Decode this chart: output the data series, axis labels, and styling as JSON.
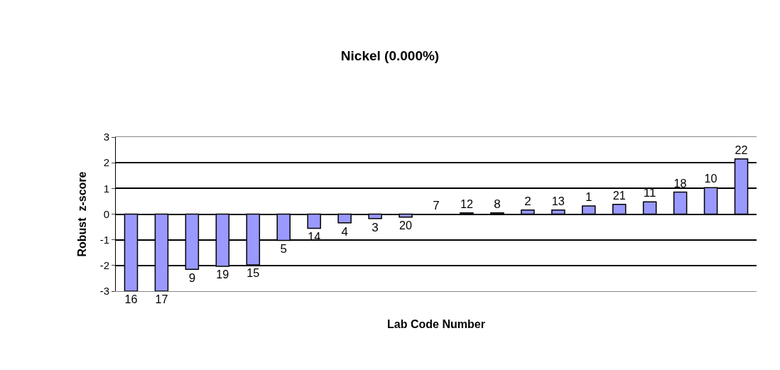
{
  "chart_data": {
    "type": "bar",
    "title": "Nickel (0.000%)",
    "xlabel": "Lab Code Number",
    "ylabel": "Robust  z-score",
    "categories": [
      "16",
      "17",
      "9",
      "19",
      "15",
      "5",
      "14",
      "4",
      "3",
      "20",
      "7",
      "12",
      "8",
      "2",
      "13",
      "1",
      "21",
      "11",
      "18",
      "10",
      "22"
    ],
    "values": [
      -3.0,
      -3.0,
      -2.15,
      -2.03,
      -1.98,
      -1.02,
      -0.55,
      -0.34,
      -0.17,
      -0.12,
      0,
      0.05,
      0.05,
      0.16,
      0.16,
      0.32,
      0.38,
      0.48,
      0.86,
      1.03,
      2.15
    ],
    "color": "#9999ff",
    "ylim": [
      -3,
      3
    ],
    "yticks": [
      -3,
      -2,
      -1,
      0,
      1,
      2,
      3
    ],
    "grid": "y"
  }
}
